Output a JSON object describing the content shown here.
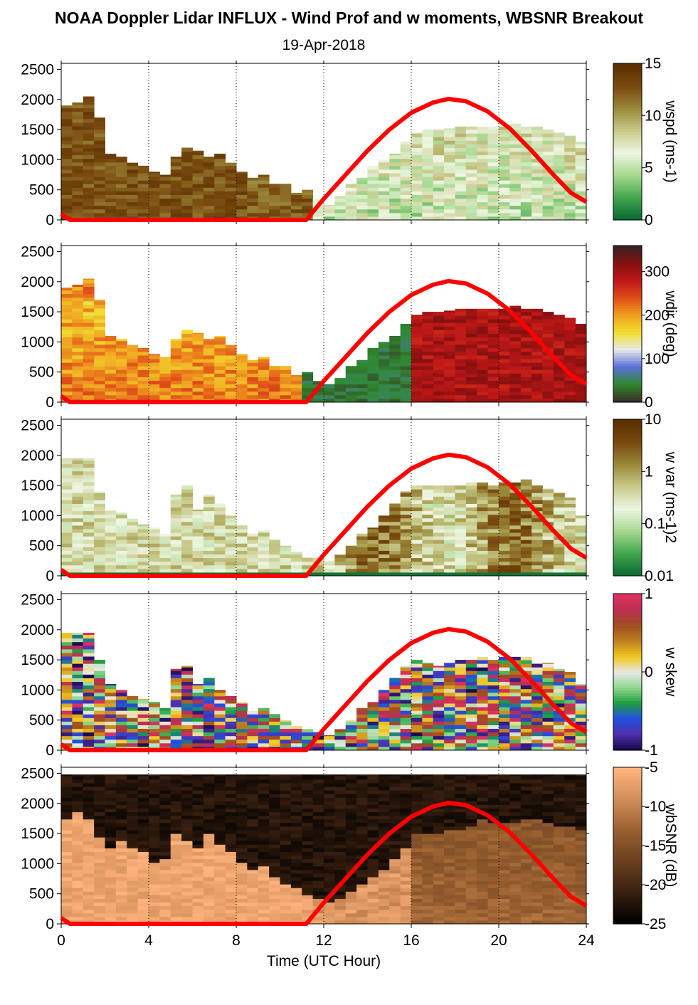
{
  "title": "NOAA Doppler Lidar INFLUX - Wind Prof and w moments, WBSNR Breakout",
  "subtitle": "19-Apr-2018",
  "chart_data": {
    "type": "heatmap",
    "xlabel": "Time (UTC Hour)",
    "xlim": [
      0,
      24
    ],
    "x_ticks": [
      "0",
      "4",
      "8",
      "12",
      "16",
      "20",
      "24"
    ],
    "y_ticks": [
      "0",
      "500",
      "1000",
      "1500",
      "2000",
      "2500"
    ],
    "ylim": [
      0,
      2600
    ],
    "grid": "dotted vertical lines at 4-hour intervals",
    "overlay_curve": {
      "color": "#ff0000",
      "points": [
        [
          0,
          100
        ],
        [
          0.4,
          0
        ],
        [
          11.2,
          0
        ],
        [
          12,
          350
        ],
        [
          13,
          750
        ],
        [
          14,
          1150
        ],
        [
          15,
          1500
        ],
        [
          16,
          1780
        ],
        [
          17,
          1950
        ],
        [
          17.7,
          2010
        ],
        [
          18.5,
          1970
        ],
        [
          19.5,
          1800
        ],
        [
          20.5,
          1520
        ],
        [
          21.5,
          1150
        ],
        [
          22.5,
          750
        ],
        [
          23.3,
          450
        ],
        [
          24,
          300
        ]
      ]
    },
    "panels": [
      {
        "colorbar_label": "wspd (ms-1)",
        "colorbar_ticks": [
          "0",
          "5",
          "10",
          "15"
        ],
        "colorbar_range": [
          0,
          15
        ],
        "colors": [
          "#0a6b33",
          "#44a84e",
          "#a8d890",
          "#eef6e2",
          "#c8ca8a",
          "#9a8a3a",
          "#7a4a10",
          "#5a3000"
        ],
        "top_of_data_m": [
          [
            0,
            1900
          ],
          [
            0.5,
            1950
          ],
          [
            1,
            2050
          ],
          [
            1.5,
            1700
          ],
          [
            2,
            1100
          ],
          [
            2.5,
            1050
          ],
          [
            3,
            950
          ],
          [
            3.5,
            900
          ],
          [
            4,
            800
          ],
          [
            4.5,
            750
          ],
          [
            5,
            1050
          ],
          [
            5.5,
            1200
          ],
          [
            6,
            1150
          ],
          [
            6.5,
            1050
          ],
          [
            7,
            1100
          ],
          [
            7.5,
            950
          ],
          [
            8,
            800
          ],
          [
            8.5,
            700
          ],
          [
            9,
            750
          ],
          [
            9.5,
            600
          ],
          [
            10,
            600
          ],
          [
            10.5,
            450
          ],
          [
            11,
            500
          ],
          [
            11.5,
            350
          ],
          [
            12,
            250
          ],
          [
            12.5,
            400
          ],
          [
            13,
            600
          ],
          [
            13.5,
            700
          ],
          [
            14,
            900
          ],
          [
            14.5,
            1000
          ],
          [
            15,
            1100
          ],
          [
            15.5,
            1300
          ],
          [
            16,
            1450
          ],
          [
            16.5,
            1500
          ],
          [
            17,
            1500
          ],
          [
            17.5,
            1520
          ],
          [
            18,
            1550
          ],
          [
            18.5,
            1550
          ],
          [
            19,
            1550
          ],
          [
            19.5,
            1550
          ],
          [
            20,
            1550
          ],
          [
            20.5,
            1600
          ],
          [
            21,
            1550
          ],
          [
            21.5,
            1550
          ],
          [
            22,
            1500
          ],
          [
            22.5,
            1450
          ],
          [
            23,
            1400
          ],
          [
            23.5,
            1300
          ]
        ]
      },
      {
        "colorbar_label": "wdir (deg)",
        "colorbar_ticks": [
          "0",
          "100",
          "200",
          "300"
        ],
        "colorbar_range": [
          0,
          360
        ],
        "colors": [
          "#3a3028",
          "#2e8a2e",
          "#5a70d8",
          "#e8e8e8",
          "#f0e030",
          "#f0a020",
          "#e05018",
          "#c01818",
          "#8a1010",
          "#3a2020"
        ],
        "top_of_data_m": [
          [
            0,
            1900
          ],
          [
            0.5,
            1950
          ],
          [
            1,
            2050
          ],
          [
            1.5,
            1700
          ],
          [
            2,
            1100
          ],
          [
            2.5,
            1050
          ],
          [
            3,
            950
          ],
          [
            3.5,
            900
          ],
          [
            4,
            800
          ],
          [
            4.5,
            750
          ],
          [
            5,
            1050
          ],
          [
            5.5,
            1200
          ],
          [
            6,
            1150
          ],
          [
            6.5,
            1050
          ],
          [
            7,
            1100
          ],
          [
            7.5,
            950
          ],
          [
            8,
            800
          ],
          [
            8.5,
            700
          ],
          [
            9,
            750
          ],
          [
            9.5,
            600
          ],
          [
            10,
            600
          ],
          [
            10.5,
            450
          ],
          [
            11,
            500
          ],
          [
            11.5,
            350
          ],
          [
            12,
            300
          ],
          [
            12.5,
            400
          ],
          [
            13,
            600
          ],
          [
            13.5,
            700
          ],
          [
            14,
            900
          ],
          [
            14.5,
            1000
          ],
          [
            15,
            1100
          ],
          [
            15.5,
            1300
          ],
          [
            16,
            1450
          ],
          [
            16.5,
            1500
          ],
          [
            17,
            1500
          ],
          [
            17.5,
            1520
          ],
          [
            18,
            1550
          ],
          [
            18.5,
            1550
          ],
          [
            19,
            1550
          ],
          [
            19.5,
            1550
          ],
          [
            20,
            1550
          ],
          [
            20.5,
            1600
          ],
          [
            21,
            1550
          ],
          [
            21.5,
            1550
          ],
          [
            22,
            1500
          ],
          [
            22.5,
            1450
          ],
          [
            23,
            1400
          ],
          [
            23.5,
            1300
          ]
        ]
      },
      {
        "colorbar_label": "w var (ms-1)2",
        "colorbar_ticks": [
          "0.01",
          "0.1",
          "1",
          "10"
        ],
        "colorbar_scale": "log",
        "colorbar_range": [
          0.01,
          10
        ],
        "colors": [
          "#0a6b33",
          "#44a84e",
          "#a8d890",
          "#eef6e2",
          "#c8ca8a",
          "#9a8a3a",
          "#7a4a10",
          "#5a3000"
        ],
        "top_of_data_m": [
          [
            0,
            1950
          ],
          [
            0.5,
            1950
          ],
          [
            1,
            1950
          ],
          [
            1.5,
            1400
          ],
          [
            2,
            1100
          ],
          [
            2.5,
            1050
          ],
          [
            3,
            950
          ],
          [
            3.5,
            850
          ],
          [
            4,
            800
          ],
          [
            4.5,
            700
          ],
          [
            5,
            1350
          ],
          [
            5.5,
            1500
          ],
          [
            6,
            1100
          ],
          [
            6.5,
            1350
          ],
          [
            7,
            1200
          ],
          [
            7.5,
            1000
          ],
          [
            8,
            850
          ],
          [
            8.5,
            700
          ],
          [
            9,
            750
          ],
          [
            9.5,
            600
          ],
          [
            10,
            500
          ],
          [
            10.5,
            400
          ],
          [
            11,
            300
          ],
          [
            11.5,
            300
          ],
          [
            12,
            250
          ],
          [
            12.5,
            350
          ],
          [
            13,
            500
          ],
          [
            13.5,
            700
          ],
          [
            14,
            800
          ],
          [
            14.5,
            1000
          ],
          [
            15,
            1200
          ],
          [
            15.5,
            1400
          ],
          [
            16,
            1500
          ],
          [
            16.5,
            1500
          ],
          [
            17,
            1500
          ],
          [
            17.5,
            1500
          ],
          [
            18,
            1500
          ],
          [
            18.5,
            1550
          ],
          [
            19,
            1550
          ],
          [
            19.5,
            1500
          ],
          [
            20,
            1550
          ],
          [
            20.5,
            1550
          ],
          [
            21,
            1600
          ],
          [
            21.5,
            1500
          ],
          [
            22,
            1450
          ],
          [
            22.5,
            1400
          ],
          [
            23,
            1300
          ],
          [
            23.5,
            1000
          ]
        ]
      },
      {
        "colorbar_label": "w skew",
        "colorbar_ticks": [
          "-1",
          "0",
          "1"
        ],
        "colorbar_range": [
          -1,
          1
        ],
        "colors": [
          "#1a0a50",
          "#5030b0",
          "#2050e0",
          "#20a040",
          "#90d890",
          "#e8e8e8",
          "#f0c820",
          "#c08020",
          "#a05020",
          "#b83050",
          "#e03060"
        ],
        "top_of_data_m": [
          [
            0,
            1950
          ],
          [
            0.5,
            1950
          ],
          [
            1,
            1950
          ],
          [
            1.5,
            1500
          ],
          [
            2,
            1100
          ],
          [
            2.5,
            1000
          ],
          [
            3,
            900
          ],
          [
            3.5,
            850
          ],
          [
            4,
            800
          ],
          [
            4.5,
            700
          ],
          [
            5,
            1350
          ],
          [
            5.5,
            1400
          ],
          [
            6,
            1100
          ],
          [
            6.5,
            1200
          ],
          [
            7,
            1000
          ],
          [
            7.5,
            900
          ],
          [
            8,
            800
          ],
          [
            8.5,
            650
          ],
          [
            9,
            700
          ],
          [
            9.5,
            600
          ],
          [
            10,
            500
          ],
          [
            10.5,
            400
          ],
          [
            11,
            350
          ],
          [
            11.5,
            300
          ],
          [
            12,
            250
          ],
          [
            12.5,
            350
          ],
          [
            13,
            500
          ],
          [
            13.5,
            700
          ],
          [
            14,
            800
          ],
          [
            14.5,
            1000
          ],
          [
            15,
            1200
          ],
          [
            15.5,
            1400
          ],
          [
            16,
            1500
          ],
          [
            16.5,
            1450
          ],
          [
            17,
            1400
          ],
          [
            17.5,
            1450
          ],
          [
            18,
            1500
          ],
          [
            18.5,
            1500
          ],
          [
            19,
            1550
          ],
          [
            19.5,
            1500
          ],
          [
            20,
            1550
          ],
          [
            20.5,
            1550
          ],
          [
            21,
            1550
          ],
          [
            21.5,
            1450
          ],
          [
            22,
            1450
          ],
          [
            22.5,
            1350
          ],
          [
            23,
            1300
          ],
          [
            23.5,
            1100
          ]
        ]
      },
      {
        "colorbar_label": "wbSNR (dB)",
        "colorbar_ticks": [
          "-25",
          "-20",
          "-15",
          "-10",
          "-5"
        ],
        "colorbar_range": [
          -25,
          -5
        ],
        "colors": [
          "#000000",
          "#3a2010",
          "#6a4020",
          "#9a6030",
          "#d08c58",
          "#ffb47c"
        ],
        "top_of_data_m": [
          [
            0,
            1700
          ],
          [
            0.5,
            1850
          ],
          [
            1,
            1700
          ],
          [
            1.5,
            1400
          ],
          [
            2,
            1250
          ],
          [
            2.5,
            1350
          ],
          [
            3,
            1250
          ],
          [
            3.5,
            1150
          ],
          [
            4,
            1000
          ],
          [
            4.5,
            1050
          ],
          [
            5,
            1450
          ],
          [
            5.5,
            1350
          ],
          [
            6,
            1200
          ],
          [
            6.5,
            1450
          ],
          [
            7,
            1300
          ],
          [
            7.5,
            1150
          ],
          [
            8,
            1000
          ],
          [
            8.5,
            850
          ],
          [
            9,
            900
          ],
          [
            9.5,
            750
          ],
          [
            10,
            650
          ],
          [
            10.5,
            550
          ],
          [
            11,
            450
          ],
          [
            11.5,
            400
          ],
          [
            12,
            350
          ],
          [
            12.5,
            400
          ],
          [
            13,
            500
          ],
          [
            13.5,
            650
          ],
          [
            14,
            750
          ],
          [
            14.5,
            850
          ],
          [
            15,
            1050
          ],
          [
            15.5,
            1250
          ],
          [
            16,
            1450
          ],
          [
            16.5,
            1450
          ],
          [
            17,
            1450
          ],
          [
            17.5,
            1500
          ],
          [
            18,
            1550
          ],
          [
            18.5,
            1600
          ],
          [
            19,
            1700
          ],
          [
            19.5,
            1650
          ],
          [
            20,
            1650
          ],
          [
            20.5,
            1650
          ],
          [
            21,
            1700
          ],
          [
            21.5,
            1700
          ],
          [
            22,
            1650
          ],
          [
            22.5,
            1600
          ],
          [
            23,
            1600
          ],
          [
            23.5,
            1550
          ]
        ]
      }
    ]
  }
}
